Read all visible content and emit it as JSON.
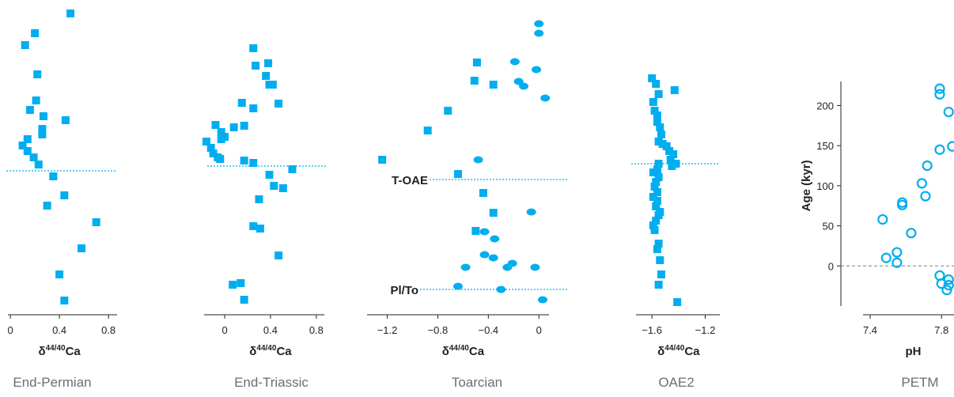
{
  "colors": {
    "marker": "#00aeef",
    "axis": "#231f20",
    "title": "#6d6e71",
    "zero_line": "#808080"
  },
  "chart_data": [
    {
      "type": "scatter",
      "title": "End-Permian",
      "xlabel": "δ44/40Ca",
      "marker": "square",
      "xlim": [
        -0.02,
        0.87
      ],
      "xticks": [
        0,
        0.4,
        0.8
      ],
      "xtick_labels": [
        "0",
        "0.4",
        "0.8"
      ],
      "boundary_line": true,
      "points": [
        {
          "x": 0.49,
          "y": 483
        },
        {
          "x": 0.2,
          "y": 458
        },
        {
          "x": 0.12,
          "y": 443
        },
        {
          "x": 0.22,
          "y": 406
        },
        {
          "x": 0.21,
          "y": 373
        },
        {
          "x": 0.16,
          "y": 361
        },
        {
          "x": 0.27,
          "y": 353
        },
        {
          "x": 0.45,
          "y": 348
        },
        {
          "x": 0.26,
          "y": 337
        },
        {
          "x": 0.26,
          "y": 330
        },
        {
          "x": 0.14,
          "y": 324
        },
        {
          "x": 0.1,
          "y": 316
        },
        {
          "x": 0.14,
          "y": 309
        },
        {
          "x": 0.19,
          "y": 301
        },
        {
          "x": 0.23,
          "y": 292
        },
        {
          "x": 0.35,
          "y": 277
        },
        {
          "x": 0.44,
          "y": 253
        },
        {
          "x": 0.3,
          "y": 240
        },
        {
          "x": 0.7,
          "y": 219
        },
        {
          "x": 0.58,
          "y": 186
        },
        {
          "x": 0.4,
          "y": 153
        },
        {
          "x": 0.44,
          "y": 120
        }
      ]
    },
    {
      "type": "scatter",
      "title": "End-Triassic",
      "xlabel": "δ44/40Ca",
      "marker": "square",
      "xlim": [
        -0.18,
        0.87
      ],
      "xticks": [
        0,
        0.4,
        0.8
      ],
      "xtick_labels": [
        "0",
        "0.4",
        "0.8"
      ],
      "boundary_line": true,
      "points": [
        {
          "x": 0.25,
          "y": 439
        },
        {
          "x": 0.38,
          "y": 420
        },
        {
          "x": 0.27,
          "y": 417
        },
        {
          "x": 0.36,
          "y": 404
        },
        {
          "x": 0.39,
          "y": 393
        },
        {
          "x": 0.42,
          "y": 393
        },
        {
          "x": 0.47,
          "y": 369
        },
        {
          "x": 0.15,
          "y": 370
        },
        {
          "x": 0.25,
          "y": 363
        },
        {
          "x": -0.08,
          "y": 342
        },
        {
          "x": 0.08,
          "y": 339
        },
        {
          "x": 0.17,
          "y": 341
        },
        {
          "x": -0.03,
          "y": 333
        },
        {
          "x": 0.0,
          "y": 327
        },
        {
          "x": -0.03,
          "y": 324
        },
        {
          "x": -0.16,
          "y": 321
        },
        {
          "x": -0.12,
          "y": 313
        },
        {
          "x": -0.1,
          "y": 306
        },
        {
          "x": -0.06,
          "y": 301
        },
        {
          "x": -0.04,
          "y": 299
        },
        {
          "x": 0.17,
          "y": 297
        },
        {
          "x": 0.25,
          "y": 294
        },
        {
          "x": 0.59,
          "y": 286
        },
        {
          "x": 0.39,
          "y": 279
        },
        {
          "x": 0.43,
          "y": 265
        },
        {
          "x": 0.51,
          "y": 262
        },
        {
          "x": 0.3,
          "y": 248
        },
        {
          "x": 0.25,
          "y": 214
        },
        {
          "x": 0.31,
          "y": 211
        },
        {
          "x": 0.47,
          "y": 177
        },
        {
          "x": 0.07,
          "y": 140
        },
        {
          "x": 0.14,
          "y": 142
        },
        {
          "x": 0.17,
          "y": 121
        }
      ]
    },
    {
      "type": "scatter",
      "title": "Toarcian",
      "xlabel": "δ44/40Ca",
      "marker": "mixed",
      "xlim": [
        -1.36,
        0.08
      ],
      "xticks": [
        -1.2,
        -0.8,
        -0.4,
        0
      ],
      "xtick_labels": [
        "−1.2",
        "−0.8",
        "−0.4",
        "0"
      ],
      "boundary_line": true,
      "annotations": [
        "T-OAE",
        "Pl/To"
      ],
      "points": [
        {
          "x": 0.0,
          "y": 470,
          "m": "diamond"
        },
        {
          "x": 0.0,
          "y": 458,
          "m": "diamond"
        },
        {
          "x": -0.19,
          "y": 422,
          "m": "diamond"
        },
        {
          "x": -0.02,
          "y": 412,
          "m": "diamond"
        },
        {
          "x": -0.16,
          "y": 397,
          "m": "diamond"
        },
        {
          "x": -0.12,
          "y": 391,
          "m": "diamond"
        },
        {
          "x": 0.05,
          "y": 376,
          "m": "diamond"
        },
        {
          "x": -0.49,
          "y": 421,
          "m": "square"
        },
        {
          "x": -0.51,
          "y": 398,
          "m": "square"
        },
        {
          "x": -0.36,
          "y": 393,
          "m": "square"
        },
        {
          "x": -0.72,
          "y": 360,
          "m": "square"
        },
        {
          "x": -0.88,
          "y": 335,
          "m": "square"
        },
        {
          "x": -1.24,
          "y": 298,
          "m": "square"
        },
        {
          "x": -0.48,
          "y": 298,
          "m": "diamond"
        },
        {
          "x": -0.64,
          "y": 280,
          "m": "square"
        },
        {
          "x": -0.44,
          "y": 256,
          "m": "square"
        },
        {
          "x": -0.36,
          "y": 231,
          "m": "square"
        },
        {
          "x": -0.06,
          "y": 232,
          "m": "diamond"
        },
        {
          "x": -0.5,
          "y": 208,
          "m": "square"
        },
        {
          "x": -0.43,
          "y": 207,
          "m": "diamond"
        },
        {
          "x": -0.35,
          "y": 198,
          "m": "diamond"
        },
        {
          "x": -0.43,
          "y": 178,
          "m": "diamond"
        },
        {
          "x": -0.36,
          "y": 174,
          "m": "diamond"
        },
        {
          "x": -0.21,
          "y": 167,
          "m": "diamond"
        },
        {
          "x": -0.25,
          "y": 162,
          "m": "diamond"
        },
        {
          "x": -0.58,
          "y": 162,
          "m": "diamond"
        },
        {
          "x": -0.03,
          "y": 162,
          "m": "diamond"
        },
        {
          "x": -0.64,
          "y": 138,
          "m": "diamond"
        },
        {
          "x": -0.3,
          "y": 134,
          "m": "diamond"
        },
        {
          "x": 0.03,
          "y": 121,
          "m": "diamond"
        }
      ]
    },
    {
      "type": "scatter",
      "title": "OAE2",
      "xlabel": "δ44/40Ca",
      "marker": "square",
      "xlim": [
        -1.72,
        -1.09
      ],
      "xticks": [
        -1.6,
        -1.2
      ],
      "xtick_labels": [
        "−1.6",
        "−1.2"
      ],
      "boundary_line": true,
      "points": [
        {
          "x": -1.6,
          "y": 401
        },
        {
          "x": -1.57,
          "y": 394
        },
        {
          "x": -1.43,
          "y": 386
        },
        {
          "x": -1.55,
          "y": 381
        },
        {
          "x": -1.59,
          "y": 371
        },
        {
          "x": -1.58,
          "y": 360
        },
        {
          "x": -1.56,
          "y": 354
        },
        {
          "x": -1.56,
          "y": 346
        },
        {
          "x": -1.54,
          "y": 339
        },
        {
          "x": -1.53,
          "y": 330
        },
        {
          "x": -1.55,
          "y": 321
        },
        {
          "x": -1.52,
          "y": 318
        },
        {
          "x": -1.49,
          "y": 315
        },
        {
          "x": -1.47,
          "y": 309
        },
        {
          "x": -1.44,
          "y": 305
        },
        {
          "x": -1.46,
          "y": 298
        },
        {
          "x": -1.42,
          "y": 293
        },
        {
          "x": -1.45,
          "y": 290
        },
        {
          "x": -1.55,
          "y": 293
        },
        {
          "x": -1.56,
          "y": 286
        },
        {
          "x": -1.59,
          "y": 282
        },
        {
          "x": -1.55,
          "y": 276
        },
        {
          "x": -1.57,
          "y": 270
        },
        {
          "x": -1.58,
          "y": 264
        },
        {
          "x": -1.56,
          "y": 257
        },
        {
          "x": -1.59,
          "y": 251
        },
        {
          "x": -1.56,
          "y": 246
        },
        {
          "x": -1.57,
          "y": 239
        },
        {
          "x": -1.54,
          "y": 232
        },
        {
          "x": -1.55,
          "y": 228
        },
        {
          "x": -1.57,
          "y": 221
        },
        {
          "x": -1.59,
          "y": 215
        },
        {
          "x": -1.58,
          "y": 209
        },
        {
          "x": -1.55,
          "y": 192
        },
        {
          "x": -1.56,
          "y": 185
        },
        {
          "x": -1.54,
          "y": 171
        },
        {
          "x": -1.53,
          "y": 153
        },
        {
          "x": -1.55,
          "y": 140
        },
        {
          "x": -1.41,
          "y": 118
        }
      ]
    },
    {
      "type": "scatter",
      "title": "PETM",
      "xlabel": "pH",
      "ylabel": "Age (kyr)",
      "marker": "circle-open",
      "xlim": [
        7.36,
        7.87
      ],
      "ylim": [
        -50,
        230
      ],
      "xticks": [
        7.4,
        7.8
      ],
      "xtick_labels": [
        "7.4",
        "7.8"
      ],
      "yticks": [
        0,
        50,
        100,
        150,
        200
      ],
      "ytick_labels": [
        "0",
        "50",
        "100",
        "150",
        "200"
      ],
      "zero_line": true,
      "points": [
        {
          "x": 7.79,
          "y": 221
        },
        {
          "x": 7.79,
          "y": 214
        },
        {
          "x": 7.84,
          "y": 192
        },
        {
          "x": 7.86,
          "y": 149
        },
        {
          "x": 7.79,
          "y": 145
        },
        {
          "x": 7.72,
          "y": 125
        },
        {
          "x": 7.69,
          "y": 103
        },
        {
          "x": 7.71,
          "y": 87
        },
        {
          "x": 7.58,
          "y": 79
        },
        {
          "x": 7.58,
          "y": 76
        },
        {
          "x": 7.47,
          "y": 58
        },
        {
          "x": 7.63,
          "y": 41
        },
        {
          "x": 7.55,
          "y": 17
        },
        {
          "x": 7.49,
          "y": 10
        },
        {
          "x": 7.55,
          "y": 4
        },
        {
          "x": 7.79,
          "y": -12
        },
        {
          "x": 7.84,
          "y": -17
        },
        {
          "x": 7.8,
          "y": -22
        },
        {
          "x": 7.84,
          "y": -24
        },
        {
          "x": 7.83,
          "y": -30
        }
      ]
    }
  ]
}
